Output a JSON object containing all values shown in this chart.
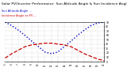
{
  "title": "Solar PV/Inverter Performance  Sun Altitude Angle & Sun Incidence Angle on PV Panels",
  "title_fontsize": 3.2,
  "legend_line1": "Sun Altitude Angle --",
  "legend_line2": "Incidence Angle on PV --",
  "x_values": [
    5,
    6,
    7,
    8,
    9,
    10,
    11,
    12,
    13,
    14,
    15,
    16,
    17,
    18,
    19,
    20
  ],
  "blue_y": [
    90,
    82,
    72,
    60,
    47,
    35,
    22,
    18,
    22,
    35,
    47,
    60,
    72,
    82,
    88,
    90
  ],
  "red_y": [
    8,
    18,
    26,
    34,
    38,
    40,
    42,
    42,
    40,
    38,
    34,
    26,
    18,
    12,
    6,
    2
  ],
  "blue_color": "#0000cc",
  "red_color": "#cc0000",
  "bg_color": "#ffffff",
  "grid_color": "#999999",
  "ylim": [
    0,
    90
  ],
  "xlim": [
    5,
    20
  ],
  "yticks": [
    0,
    10,
    20,
    30,
    40,
    50,
    60,
    70,
    80,
    90
  ],
  "xtick_count": 16,
  "figwidth": 1.6,
  "figheight": 1.0,
  "dpi": 100
}
